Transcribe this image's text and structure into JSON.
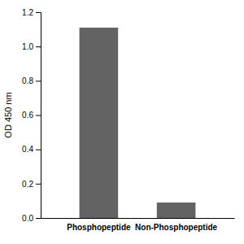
{
  "chart_data": {
    "type": "bar",
    "categories": [
      "Phosphopeptide",
      "Non-Phosphopeptide"
    ],
    "values": [
      1.11,
      0.09
    ],
    "color": "#636363",
    "ylabel": "OD 450 nm",
    "ylim": [
      0,
      1.2
    ],
    "yticks": [
      {
        "value": 0,
        "label": "0.0"
      },
      0.2,
      0.4,
      0.6,
      0.8,
      {
        "value": 1.0,
        "label": "1.0"
      },
      1.2
    ],
    "grid": false
  }
}
